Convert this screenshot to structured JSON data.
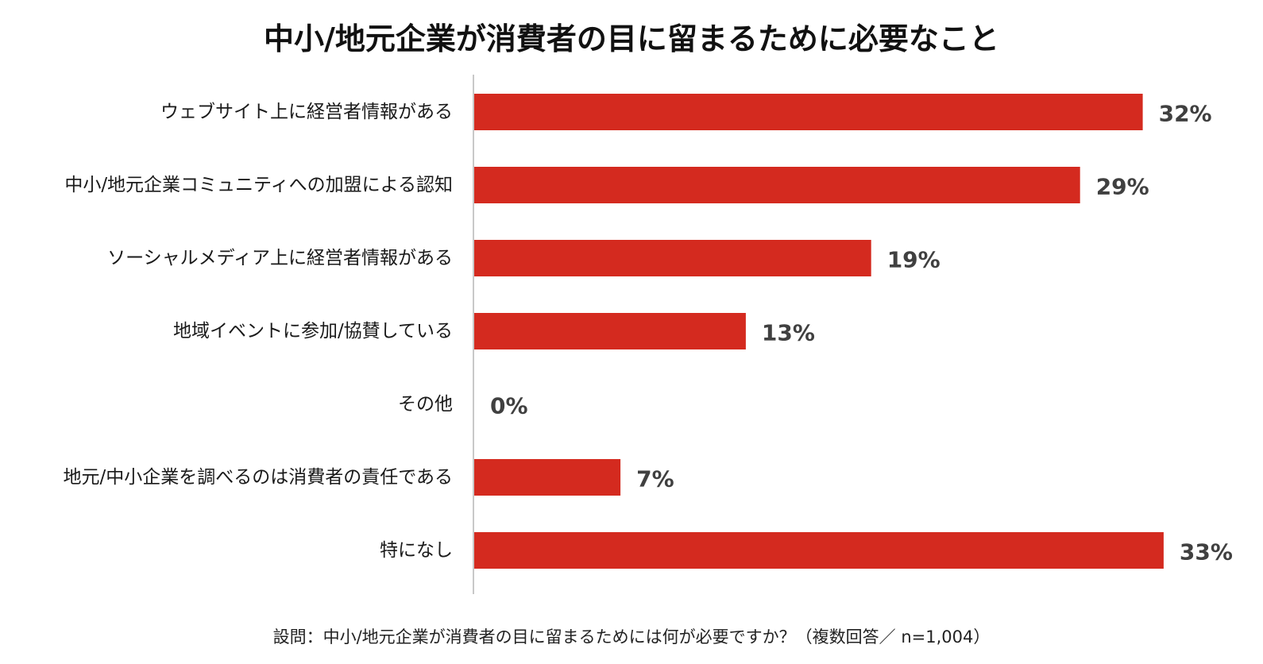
{
  "chart_data": {
    "type": "bar",
    "orientation": "horizontal",
    "title": "中小/地元企業が消費者の目に留まるために必要なこと",
    "categories": [
      "ウェブサイト上に経営者情報がある",
      "中小/地元企業コミュニティへの加盟による認知",
      "ソーシャルメディア上に経営者情報がある",
      "地域イベントに参加/協賛している",
      "その他",
      "地元/中小企業を調べるのは消費者の責任である",
      "特になし"
    ],
    "values": [
      32,
      29,
      19,
      13,
      0,
      7,
      33
    ],
    "value_labels": [
      "32%",
      "29%",
      "19%",
      "13%",
      "0%",
      "7%",
      "33%"
    ],
    "unit": "%",
    "xlim": [
      0,
      35
    ],
    "bar_color": "#d42a1f",
    "axis_color": "#c8c8c8",
    "grid": false,
    "legend": "none"
  },
  "footnote": "設問：中小/地元企業が消費者の目に留まるためには何が必要ですか？（複数回答／ n=1,004）"
}
